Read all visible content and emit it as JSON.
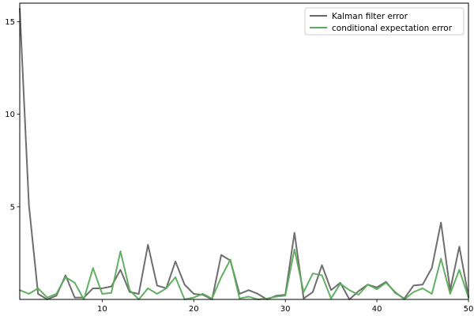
{
  "chart_data": {
    "type": "line",
    "title": "",
    "xlabel": "",
    "ylabel": "",
    "xlim": [
      1,
      50
    ],
    "ylim": [
      0,
      16
    ],
    "x_ticks": [
      10,
      20,
      30,
      40,
      50
    ],
    "y_ticks": [
      5,
      10,
      15
    ],
    "grid": false,
    "legend_position": "top-right",
    "x": [
      1,
      2,
      3,
      4,
      5,
      6,
      7,
      8,
      9,
      10,
      11,
      12,
      13,
      14,
      15,
      16,
      17,
      18,
      19,
      20,
      21,
      22,
      23,
      24,
      25,
      26,
      27,
      28,
      29,
      30,
      31,
      32,
      33,
      34,
      35,
      36,
      37,
      38,
      39,
      40,
      41,
      42,
      43,
      44,
      45,
      46,
      47,
      48,
      49,
      50
    ],
    "series": [
      {
        "name": "Kalman filter error",
        "color": "#666666",
        "values": [
          15.7,
          5.1,
          0.3,
          0.0,
          0.2,
          1.3,
          0.1,
          0.1,
          0.6,
          0.6,
          0.7,
          1.6,
          0.4,
          0.3,
          2.95,
          0.75,
          0.6,
          2.05,
          0.8,
          0.3,
          0.25,
          0.0,
          2.4,
          2.1,
          0.3,
          0.5,
          0.3,
          0.0,
          0.2,
          0.25,
          3.6,
          0.05,
          0.4,
          1.85,
          0.5,
          0.9,
          0.0,
          0.45,
          0.8,
          0.65,
          0.95,
          0.35,
          0.05,
          0.75,
          0.8,
          1.7,
          4.15,
          0.5,
          2.85,
          0.15
        ]
      },
      {
        "name": "conditional expectation error",
        "color": "#5aac5a",
        "values": [
          0.5,
          0.3,
          0.6,
          0.1,
          0.3,
          1.2,
          0.9,
          0.0,
          1.7,
          0.3,
          0.35,
          2.6,
          0.5,
          0.0,
          0.6,
          0.3,
          0.6,
          1.2,
          0.0,
          0.1,
          0.3,
          0.05,
          1.2,
          2.15,
          0.05,
          0.15,
          0.0,
          0.05,
          0.15,
          0.2,
          2.7,
          0.4,
          1.4,
          1.3,
          0.05,
          0.85,
          0.5,
          0.25,
          0.8,
          0.55,
          0.9,
          0.4,
          0.0,
          0.4,
          0.6,
          0.3,
          2.2,
          0.3,
          1.6,
          0.1
        ]
      }
    ]
  }
}
